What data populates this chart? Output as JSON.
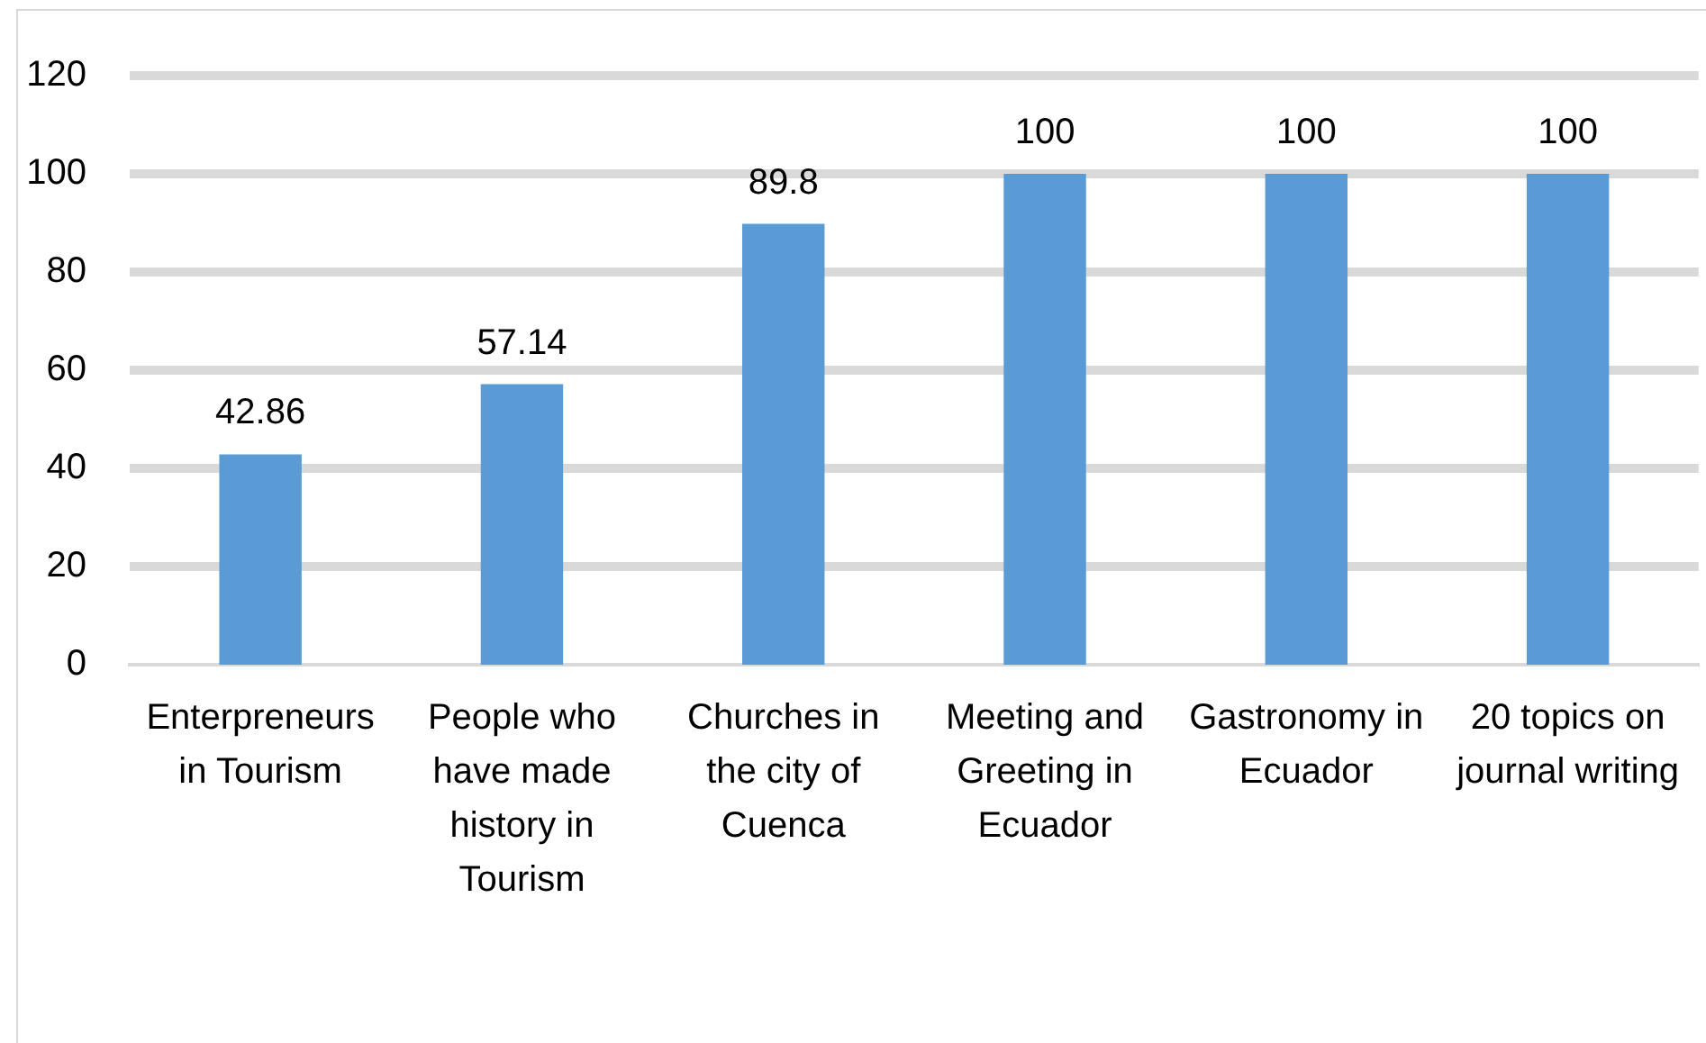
{
  "chart_data": {
    "type": "bar",
    "categories": [
      "Enterpreneurs in Tourism",
      "People who have made history in Tourism",
      "Churches in the city of Cuenca",
      "Meeting and Greeting in Ecuador",
      "Gastronomy in Ecuador",
      "20 topics on journal writing"
    ],
    "values": [
      42.86,
      57.14,
      89.8,
      100,
      100,
      100
    ],
    "color": "#5b9bd5",
    "ylim": [
      0,
      120
    ],
    "yticks": [
      0,
      20,
      40,
      60,
      80,
      100,
      120
    ],
    "grid": "y",
    "data_labels": true
  }
}
